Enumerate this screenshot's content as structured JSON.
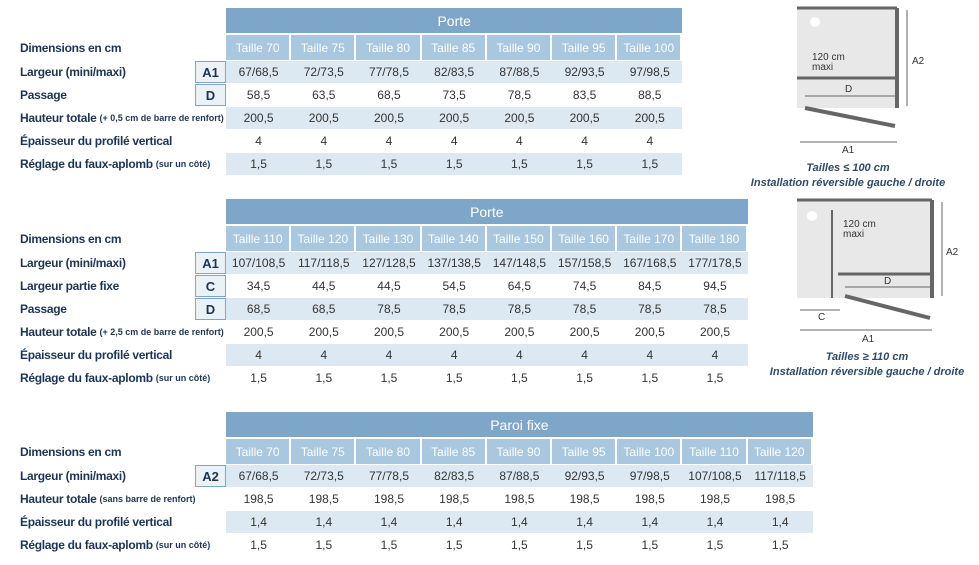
{
  "tables": [
    {
      "title": "Porte",
      "dims": "Dimensions en cm",
      "columns": [
        "Taille 70",
        "Taille 75",
        "Taille 80",
        "Taille 85",
        "Taille 90",
        "Taille 95",
        "Taille 100"
      ],
      "rows": [
        {
          "label": "Largeur (mini/maxi)",
          "code": "A1",
          "values": [
            "67/68,5",
            "72/73,5",
            "77/78,5",
            "82/83,5",
            "87/88,5",
            "92/93,5",
            "97/98,5"
          ]
        },
        {
          "label": "Passage",
          "code": "D",
          "values": [
            "58,5",
            "63,5",
            "68,5",
            "73,5",
            "78,5",
            "83,5",
            "88,5"
          ]
        },
        {
          "label": "Hauteur totale",
          "note": "(+ 0,5 cm de barre de renfort)",
          "values": [
            "200,5",
            "200,5",
            "200,5",
            "200,5",
            "200,5",
            "200,5",
            "200,5"
          ]
        },
        {
          "label": "Épaisseur du profilé vertical",
          "values": [
            "4",
            "4",
            "4",
            "4",
            "4",
            "4",
            "4"
          ]
        },
        {
          "label": "Réglage du faux-aplomb",
          "note": "(sur un côté)",
          "values": [
            "1,5",
            "1,5",
            "1,5",
            "1,5",
            "1,5",
            "1,5",
            "1,5"
          ]
        }
      ]
    },
    {
      "title": "Porte",
      "dims": "Dimensions en cm",
      "columns": [
        "Taille 110",
        "Taille 120",
        "Taille 130",
        "Taille 140",
        "Taille 150",
        "Taille 160",
        "Taille 170",
        "Taille 180"
      ],
      "rows": [
        {
          "label": "Largeur (mini/maxi)",
          "code": "A1",
          "values": [
            "107/108,5",
            "117/118,5",
            "127/128,5",
            "137/138,5",
            "147/148,5",
            "157/158,5",
            "167/168,5",
            "177/178,5"
          ]
        },
        {
          "label": "Largeur partie fixe",
          "code": "C",
          "values": [
            "34,5",
            "44,5",
            "44,5",
            "54,5",
            "64,5",
            "74,5",
            "84,5",
            "94,5"
          ]
        },
        {
          "label": "Passage",
          "code": "D",
          "values": [
            "68,5",
            "68,5",
            "78,5",
            "78,5",
            "78,5",
            "78,5",
            "78,5",
            "78,5"
          ]
        },
        {
          "label": "Hauteur totale",
          "note": "(+ 2,5 cm de barre de renfort)",
          "values": [
            "200,5",
            "200,5",
            "200,5",
            "200,5",
            "200,5",
            "200,5",
            "200,5",
            "200,5"
          ]
        },
        {
          "label": "Épaisseur du profilé vertical",
          "values": [
            "4",
            "4",
            "4",
            "4",
            "4",
            "4",
            "4",
            "4"
          ]
        },
        {
          "label": "Réglage du faux-aplomb",
          "note": "(sur un côté)",
          "values": [
            "1,5",
            "1,5",
            "1,5",
            "1,5",
            "1,5",
            "1,5",
            "1,5",
            "1,5"
          ]
        }
      ]
    },
    {
      "title": "Paroi fixe",
      "dims": "Dimensions en cm",
      "columns": [
        "Taille 70",
        "Taille 75",
        "Taille 80",
        "Taille 85",
        "Taille 90",
        "Taille 95",
        "Taille 100",
        "Taille 110",
        "Taille 120"
      ],
      "rows": [
        {
          "label": "Largeur (mini/maxi)",
          "code": "A2",
          "values": [
            "67/68,5",
            "72/73,5",
            "77/78,5",
            "82/83,5",
            "87/88,5",
            "92/93,5",
            "97/98,5",
            "107/108,5",
            "117/118,5"
          ]
        },
        {
          "label": "Hauteur totale",
          "note": "(sans barre de renfort)",
          "values": [
            "198,5",
            "198,5",
            "198,5",
            "198,5",
            "198,5",
            "198,5",
            "198,5",
            "198,5",
            "198,5"
          ]
        },
        {
          "label": "Épaisseur du profilé vertical",
          "values": [
            "1,4",
            "1,4",
            "1,4",
            "1,4",
            "1,4",
            "1,4",
            "1,4",
            "1,4",
            "1,4"
          ]
        },
        {
          "label": "Réglage du faux-aplomb",
          "note": "(sur un côté)",
          "values": [
            "1,5",
            "1,5",
            "1,5",
            "1,5",
            "1,5",
            "1,5",
            "1,5",
            "1,5",
            "1,5"
          ]
        }
      ]
    }
  ],
  "diagrams": [
    {
      "a2": "A2",
      "reach": "120 cm",
      "reach_unit": "maxi",
      "d": "D",
      "a1": "A1",
      "caption_size": "Tailles ≤ 100 cm",
      "caption_install": "Installation réversible gauche / droite"
    },
    {
      "reach": "120 cm",
      "reach_unit": "maxi",
      "a2": "A2",
      "d": "D",
      "c": "C",
      "a1": "A1",
      "caption_size": "Tailles ≥ 110 cm",
      "caption_install": "Installation réversible gauche / droite"
    }
  ]
}
